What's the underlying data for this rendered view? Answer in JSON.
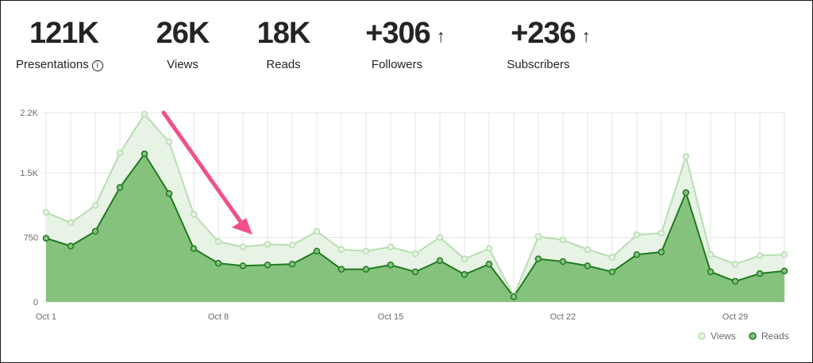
{
  "stats": {
    "presentations": {
      "value": "121K",
      "label": "Presentations",
      "info_glyph": "i"
    },
    "views": {
      "value": "26K",
      "label": "Views"
    },
    "reads": {
      "value": "18K",
      "label": "Reads"
    },
    "followers": {
      "value": "+306",
      "label": "Followers",
      "arrow": "↑"
    },
    "subscribers": {
      "value": "+236",
      "label": "Subscribers",
      "arrow": "↑"
    }
  },
  "colors": {
    "views_line": "#b9ddb3",
    "views_fill": "#e7f3e4",
    "reads_line": "#1f7a1f",
    "reads_fill": "#85c27e",
    "annotation_arrow": "#f0508c",
    "grid": "#e6e6e6"
  },
  "chart_data": {
    "type": "area",
    "x": [
      "Oct 1",
      "Oct 2",
      "Oct 3",
      "Oct 4",
      "Oct 5",
      "Oct 6",
      "Oct 7",
      "Oct 8",
      "Oct 9",
      "Oct 10",
      "Oct 11",
      "Oct 12",
      "Oct 13",
      "Oct 14",
      "Oct 15",
      "Oct 16",
      "Oct 17",
      "Oct 18",
      "Oct 19",
      "Oct 20",
      "Oct 21",
      "Oct 22",
      "Oct 23",
      "Oct 24",
      "Oct 25",
      "Oct 26",
      "Oct 27",
      "Oct 28",
      "Oct 29",
      "Oct 30",
      "Oct 31"
    ],
    "x_tick_labels": [
      "Oct 1",
      "Oct 8",
      "Oct 15",
      "Oct 22",
      "Oct 29"
    ],
    "x_tick_indices": [
      0,
      7,
      14,
      21,
      28
    ],
    "y_tick_labels": [
      "0",
      "750",
      "1.5K",
      "2.2K"
    ],
    "y_tick_values": [
      0,
      750,
      1500,
      2200
    ],
    "ylim": [
      0,
      2200
    ],
    "grid": true,
    "legend_position": "bottom-right",
    "series": [
      {
        "name": "Views",
        "values": [
          1040,
          920,
          1120,
          1730,
          2180,
          1860,
          1020,
          700,
          640,
          670,
          660,
          820,
          610,
          590,
          640,
          560,
          750,
          500,
          620,
          70,
          760,
          720,
          610,
          520,
          780,
          800,
          1690,
          550,
          440,
          540,
          550
        ]
      },
      {
        "name": "Reads",
        "values": [
          740,
          650,
          820,
          1330,
          1720,
          1260,
          620,
          450,
          420,
          430,
          440,
          590,
          380,
          380,
          430,
          350,
          480,
          320,
          440,
          60,
          500,
          470,
          420,
          350,
          550,
          580,
          1270,
          350,
          240,
          330,
          360
        ]
      }
    ]
  }
}
